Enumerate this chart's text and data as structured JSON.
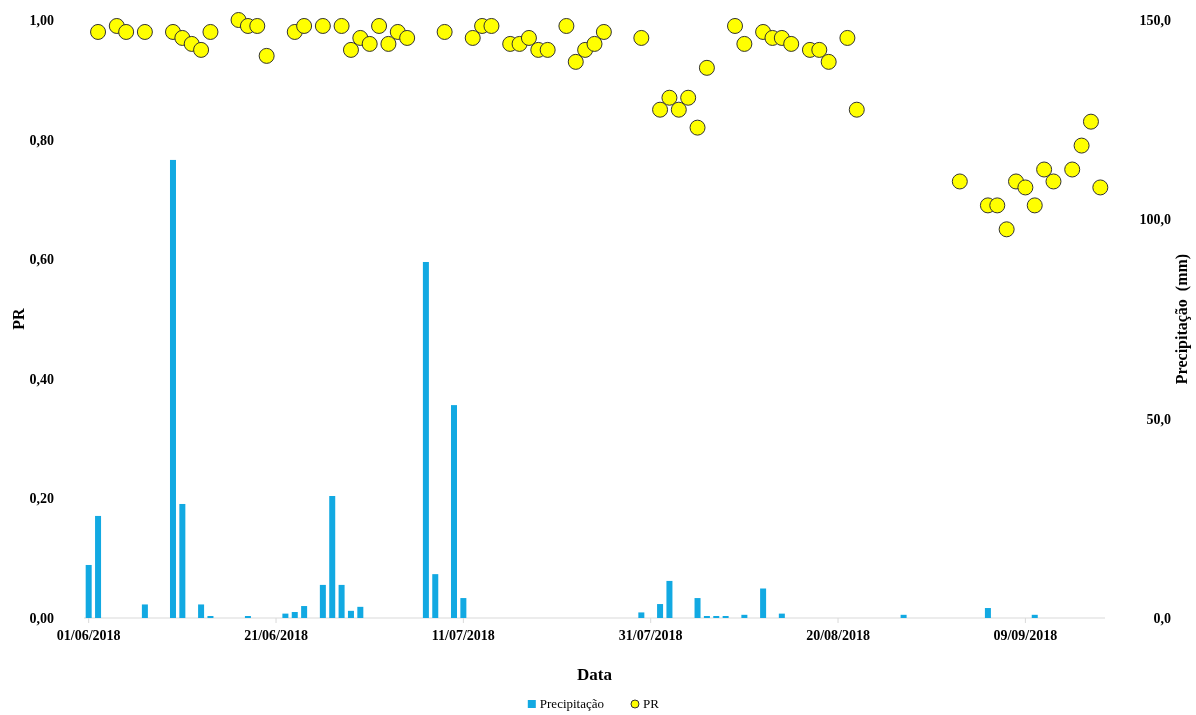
{
  "chart_data": {
    "type": "bar",
    "xlabel": "Data",
    "ylabel": "PR",
    "y2label": "Precipitação  (mm)",
    "xlim": [
      "2018-05-31T12:00",
      "2018-09-17T12:00"
    ],
    "xticks": [
      {
        "value": "2018-06-01",
        "label": "01/06/2018"
      },
      {
        "value": "2018-06-21",
        "label": "21/06/2018"
      },
      {
        "value": "2018-07-11",
        "label": "11/07/2018"
      },
      {
        "value": "2018-07-31",
        "label": "31/07/2018"
      },
      {
        "value": "2018-08-20",
        "label": "20/08/2018"
      },
      {
        "value": "2018-09-09",
        "label": "09/09/2018"
      }
    ],
    "ylim": [
      0,
      1
    ],
    "yticks": [
      {
        "value": 0,
        "label": "0,00"
      },
      {
        "value": 0.2,
        "label": "0,20"
      },
      {
        "value": 0.4,
        "label": "0,40"
      },
      {
        "value": 0.6,
        "label": "0,60"
      },
      {
        "value": 0.8,
        "label": "0,80"
      },
      {
        "value": 1,
        "label": "1,00"
      }
    ],
    "y2lim": [
      0,
      150
    ],
    "y2ticks": [
      {
        "value": 0,
        "label": "0,0"
      },
      {
        "value": 50,
        "label": "50,0"
      },
      {
        "value": 100,
        "label": "100,0"
      },
      {
        "value": 150,
        "label": "150,0"
      }
    ],
    "grid": false,
    "legend": "bottom",
    "series": [
      {
        "name": "Precipitação",
        "axis": "y2",
        "color": "#12a9e2",
        "x": [
          "2018-06-01",
          "2018-06-02",
          "2018-06-07",
          "2018-06-10",
          "2018-06-11",
          "2018-06-13",
          "2018-06-14",
          "2018-06-18",
          "2018-06-22",
          "2018-06-23",
          "2018-06-24",
          "2018-06-26",
          "2018-06-27",
          "2018-06-28",
          "2018-06-29",
          "2018-06-30",
          "2018-07-07",
          "2018-07-08",
          "2018-07-10",
          "2018-07-11",
          "2018-07-30",
          "2018-08-01",
          "2018-08-02",
          "2018-08-05",
          "2018-08-06",
          "2018-08-07",
          "2018-08-08",
          "2018-08-10",
          "2018-08-12",
          "2018-08-14",
          "2018-08-27",
          "2018-09-05",
          "2018-09-10"
        ],
        "values": [
          13.3,
          25.6,
          3.4,
          114.9,
          28.6,
          3.4,
          0.5,
          0.5,
          1.1,
          1.5,
          3.0,
          8.3,
          30.6,
          8.3,
          1.8,
          2.8,
          89.3,
          11.0,
          53.4,
          5.0,
          1.4,
          3.5,
          9.3,
          5.0,
          0.5,
          0.5,
          0.5,
          0.8,
          7.4,
          1.1,
          0.8,
          2.5,
          0.8
        ]
      },
      {
        "name": "PR",
        "type": "scatter",
        "marker": "circle",
        "color": "#ffff00",
        "x": [
          "2018-06-02",
          "2018-06-04",
          "2018-06-05",
          "2018-06-07",
          "2018-06-10",
          "2018-06-11",
          "2018-06-12",
          "2018-06-13",
          "2018-06-14",
          "2018-06-17",
          "2018-06-18",
          "2018-06-19",
          "2018-06-20",
          "2018-06-23",
          "2018-06-24",
          "2018-06-26",
          "2018-06-28",
          "2018-06-29",
          "2018-06-30",
          "2018-07-01",
          "2018-07-02",
          "2018-07-03",
          "2018-07-04",
          "2018-07-05",
          "2018-07-09",
          "2018-07-12",
          "2018-07-13",
          "2018-07-14",
          "2018-07-16",
          "2018-07-17",
          "2018-07-18",
          "2018-07-19",
          "2018-07-20",
          "2018-07-22",
          "2018-07-23",
          "2018-07-24",
          "2018-07-25",
          "2018-07-26",
          "2018-07-30",
          "2018-08-01",
          "2018-08-02",
          "2018-08-03",
          "2018-08-04",
          "2018-08-05",
          "2018-08-06",
          "2018-08-09",
          "2018-08-10",
          "2018-08-12",
          "2018-08-13",
          "2018-08-14",
          "2018-08-15",
          "2018-08-17",
          "2018-08-18",
          "2018-08-19",
          "2018-08-21",
          "2018-08-22",
          "2018-09-02",
          "2018-09-05",
          "2018-09-06",
          "2018-09-07",
          "2018-09-08",
          "2018-09-09",
          "2018-09-10",
          "2018-09-11",
          "2018-09-12",
          "2018-09-14",
          "2018-09-15",
          "2018-09-16",
          "2018-09-17"
        ],
        "values": [
          0.98,
          0.99,
          0.98,
          0.98,
          0.98,
          0.97,
          0.96,
          0.95,
          0.98,
          1.0,
          0.99,
          0.99,
          0.94,
          0.98,
          0.99,
          0.99,
          0.99,
          0.95,
          0.97,
          0.96,
          0.99,
          0.96,
          0.98,
          0.97,
          0.98,
          0.97,
          0.99,
          0.99,
          0.96,
          0.96,
          0.97,
          0.95,
          0.95,
          0.99,
          0.93,
          0.95,
          0.96,
          0.98,
          0.97,
          0.85,
          0.87,
          0.85,
          0.87,
          0.82,
          0.92,
          0.99,
          0.96,
          0.98,
          0.97,
          0.97,
          0.96,
          0.95,
          0.95,
          0.93,
          0.97,
          0.85,
          0.73,
          0.69,
          0.69,
          0.65,
          0.73,
          0.72,
          0.69,
          0.75,
          0.73,
          0.75,
          0.79,
          0.83,
          0.72
        ]
      }
    ]
  }
}
